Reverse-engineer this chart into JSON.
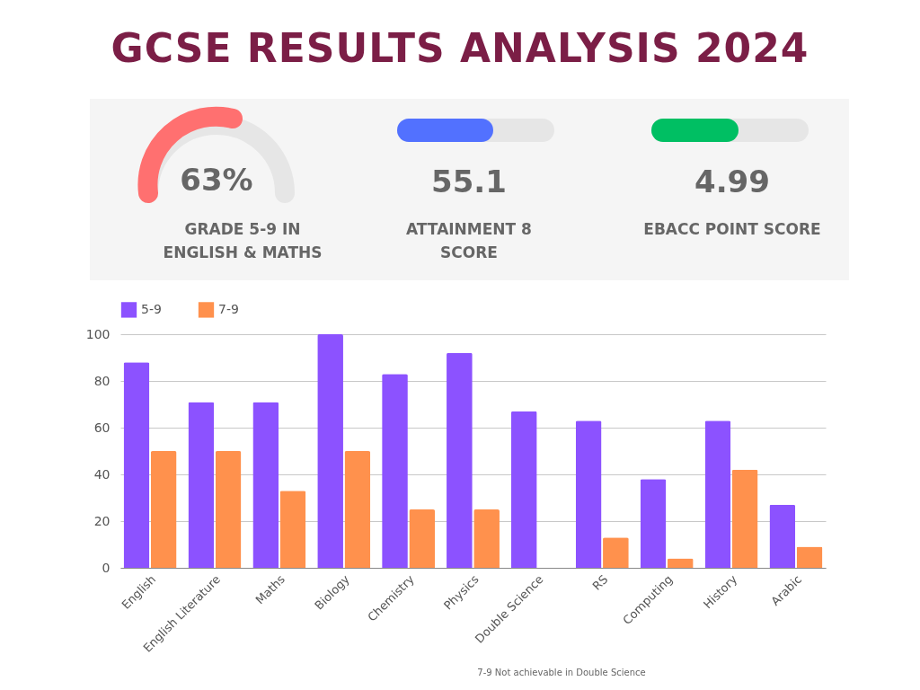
{
  "chart_data": [
    {
      "type": "other",
      "title": "GCSE RESULTS ANALYSIS 2024",
      "annotations": [
        "63%",
        "GRADE 5-9 IN ENGLISH & MATHS",
        "55.1",
        "ATTAINMENT 8 SCORE",
        "4.99",
        "EBACC POINT SCORE"
      ]
    },
    {
      "type": "bar",
      "categories": [
        "English",
        "English Literature",
        "Maths",
        "Biology",
        "Chemistry",
        "Physics",
        "Double Science",
        "RS",
        "Computing",
        "History",
        "Arabic"
      ],
      "series": [
        {
          "name": "5-9",
          "color": "#8c52ff",
          "values": [
            88,
            71,
            71,
            100,
            83,
            92,
            67,
            63,
            38,
            63,
            27
          ]
        },
        {
          "name": "7-9",
          "color": "#ff914d",
          "values": [
            50,
            50,
            33,
            50,
            25,
            25,
            null,
            13,
            4,
            42,
            9
          ]
        }
      ],
      "ylim": [
        0,
        100
      ],
      "yticks": [
        0,
        20,
        40,
        60,
        80,
        100
      ],
      "grid": "y",
      "legend": "top",
      "annotations": [
        "7-9 Not achievable in Double Science"
      ]
    }
  ]
}
